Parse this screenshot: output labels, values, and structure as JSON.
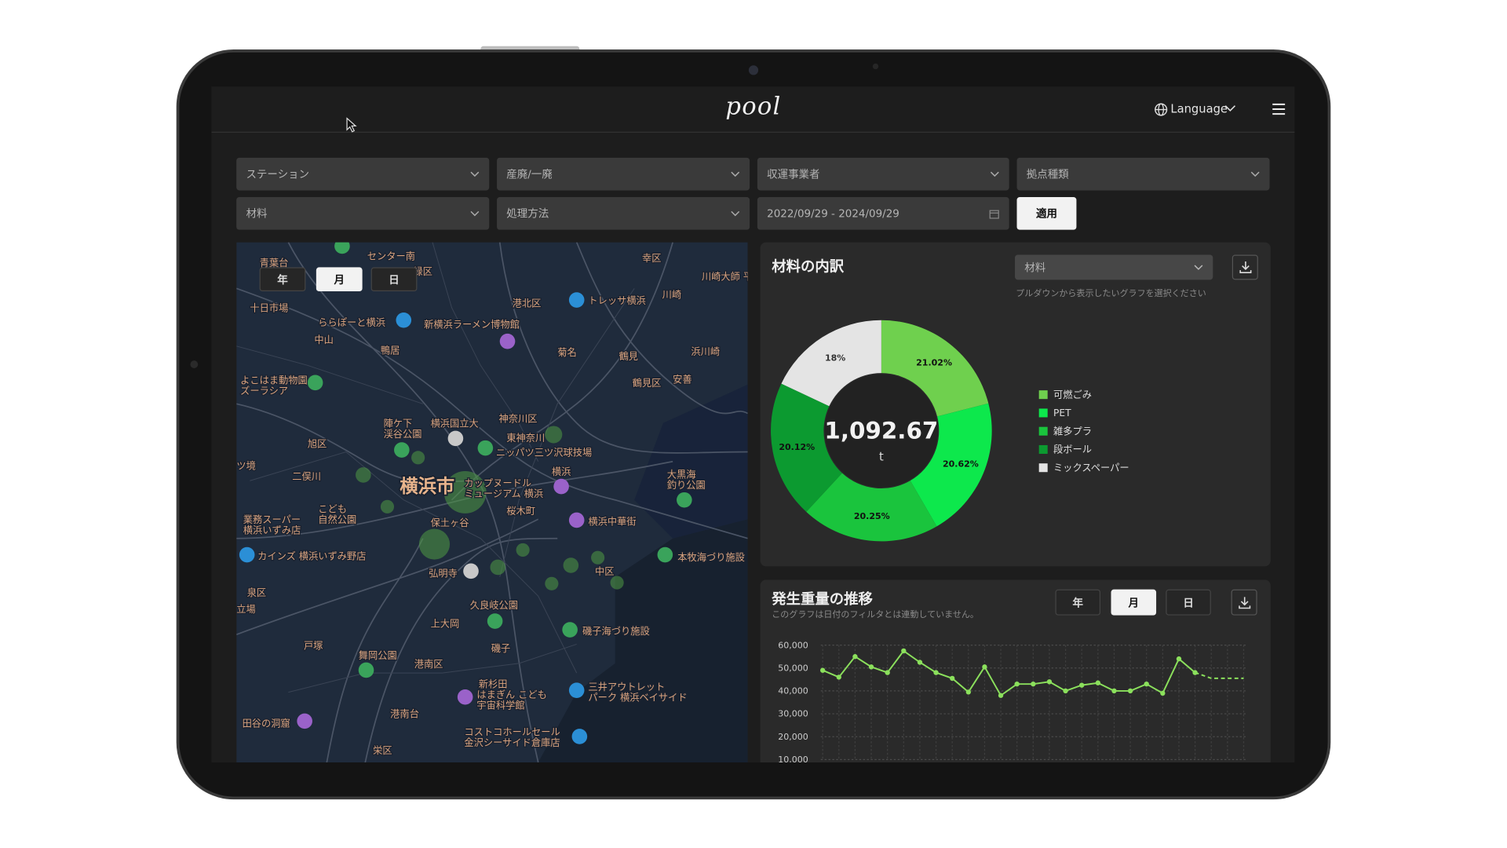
{
  "header": {
    "logo": "pool",
    "language": "Language"
  },
  "filters": {
    "row1": [
      "ステーション",
      "産廃/一廃",
      "収運事業者",
      "拠点種類"
    ],
    "row2": [
      "材料",
      "処理方法",
      "2022/09/29 - 2024/09/29"
    ],
    "apply": "適用"
  },
  "map": {
    "period_buttons": [
      "年",
      "月",
      "日"
    ],
    "active_period": 1,
    "labels": [
      "横浜市",
      "センター南",
      "トレッサ横浜",
      "新横浜ラーメン博物館",
      "ららぽーと横浜",
      "菊名",
      "鶴見",
      "中山",
      "鴨居",
      "港北区",
      "神奈川区",
      "横浜国立大",
      "東神奈川",
      "ニッパツ三ツ沢球技場",
      "カップヌードル\nミュージアム 横浜",
      "桜木町",
      "横浜中華街",
      "保土ヶ谷",
      "弘明寺",
      "中区",
      "本牧海づり施設",
      "久良岐公園",
      "上大岡",
      "磯子海づり施設",
      "磯子",
      "港南区",
      "新杉田",
      "はまぎん こども\n宇宙科学館",
      "三井アウトレット\nパーク 横浜ベイサイド",
      "戸塚",
      "舞岡公園",
      "港南台",
      "田谷の洞窟",
      "栄区",
      "コストコホールセール\n金沢シーサイド倉庫店",
      "泉区",
      "立場",
      "カインズ 横浜いずみ野店",
      "業務スーパー\n横浜いずみ店",
      "こども\n自然公園",
      "二俣川",
      "旭区",
      "ツ境",
      "陣ケ下\n渓谷公園",
      "よこはま動物園\nズーラシア",
      "十日市場",
      "青葉台",
      "緑区",
      "川崎大師 平間寺",
      "川崎",
      "幸区",
      "浜川崎",
      "安善",
      "鶴見区",
      "大黒海\n釣り公園",
      "横浜"
    ]
  },
  "chart_data": [
    {
      "type": "pie",
      "donut": true,
      "title": "材料の内訳",
      "select": "材料",
      "hint": "プルダウンから表示したいグラフを選択ください",
      "categories": [
        "可燃ごみ",
        "PET",
        "雑多プラ",
        "段ボール",
        "ミックスペーパー"
      ],
      "values": [
        21.02,
        20.62,
        20.25,
        20.12,
        18
      ],
      "value_labels": [
        "21.02%",
        "20.62%",
        "20.25%",
        "20.12%",
        "18%"
      ],
      "colors": [
        "#6fd04e",
        "#0de84c",
        "#1ac43d",
        "#0c9a30",
        "#e4e4e4"
      ],
      "total": 1092.67,
      "total_label": "1,092.67",
      "unit": "t"
    },
    {
      "type": "line",
      "title": "発生重量の推移",
      "subtitle": "このグラフは日付のフィルタとは連動していません。",
      "period_buttons": [
        "年",
        "月",
        "日"
      ],
      "active_period": 1,
      "categories": [
        null,
        null,
        null,
        null,
        null,
        null,
        null,
        null,
        null,
        null,
        null,
        null,
        null,
        null,
        null,
        null,
        null,
        null,
        null,
        null,
        null,
        null,
        null,
        null,
        null,
        null,
        null
      ],
      "series": [
        {
          "color": "#8be05c",
          "dashed": false,
          "values": [
            49000,
            46000,
            55000,
            50500,
            48000,
            57500,
            52500,
            48000,
            45500,
            39500,
            50500,
            38000,
            43000,
            43000,
            44000,
            40000,
            42500,
            43500,
            40000,
            40000,
            43000,
            39000,
            54000,
            48000,
            null,
            null,
            null
          ]
        },
        {
          "color": "#8be05c",
          "dashed": true,
          "values": [
            null,
            null,
            null,
            null,
            null,
            null,
            null,
            null,
            null,
            null,
            null,
            null,
            null,
            null,
            null,
            null,
            null,
            null,
            null,
            null,
            null,
            null,
            null,
            48000,
            45500,
            45500,
            45500
          ]
        }
      ],
      "ylim": [
        10000,
        60000
      ],
      "yticks": [
        {
          "value": 10000,
          "label": "10,000"
        },
        {
          "value": 20000,
          "label": "20,000"
        },
        {
          "value": 30000,
          "label": "30,000"
        },
        {
          "value": 40000,
          "label": "40,000"
        },
        {
          "value": 50000,
          "label": "50,000"
        },
        {
          "value": 60000,
          "label": "60,000"
        }
      ],
      "grid": true
    }
  ]
}
